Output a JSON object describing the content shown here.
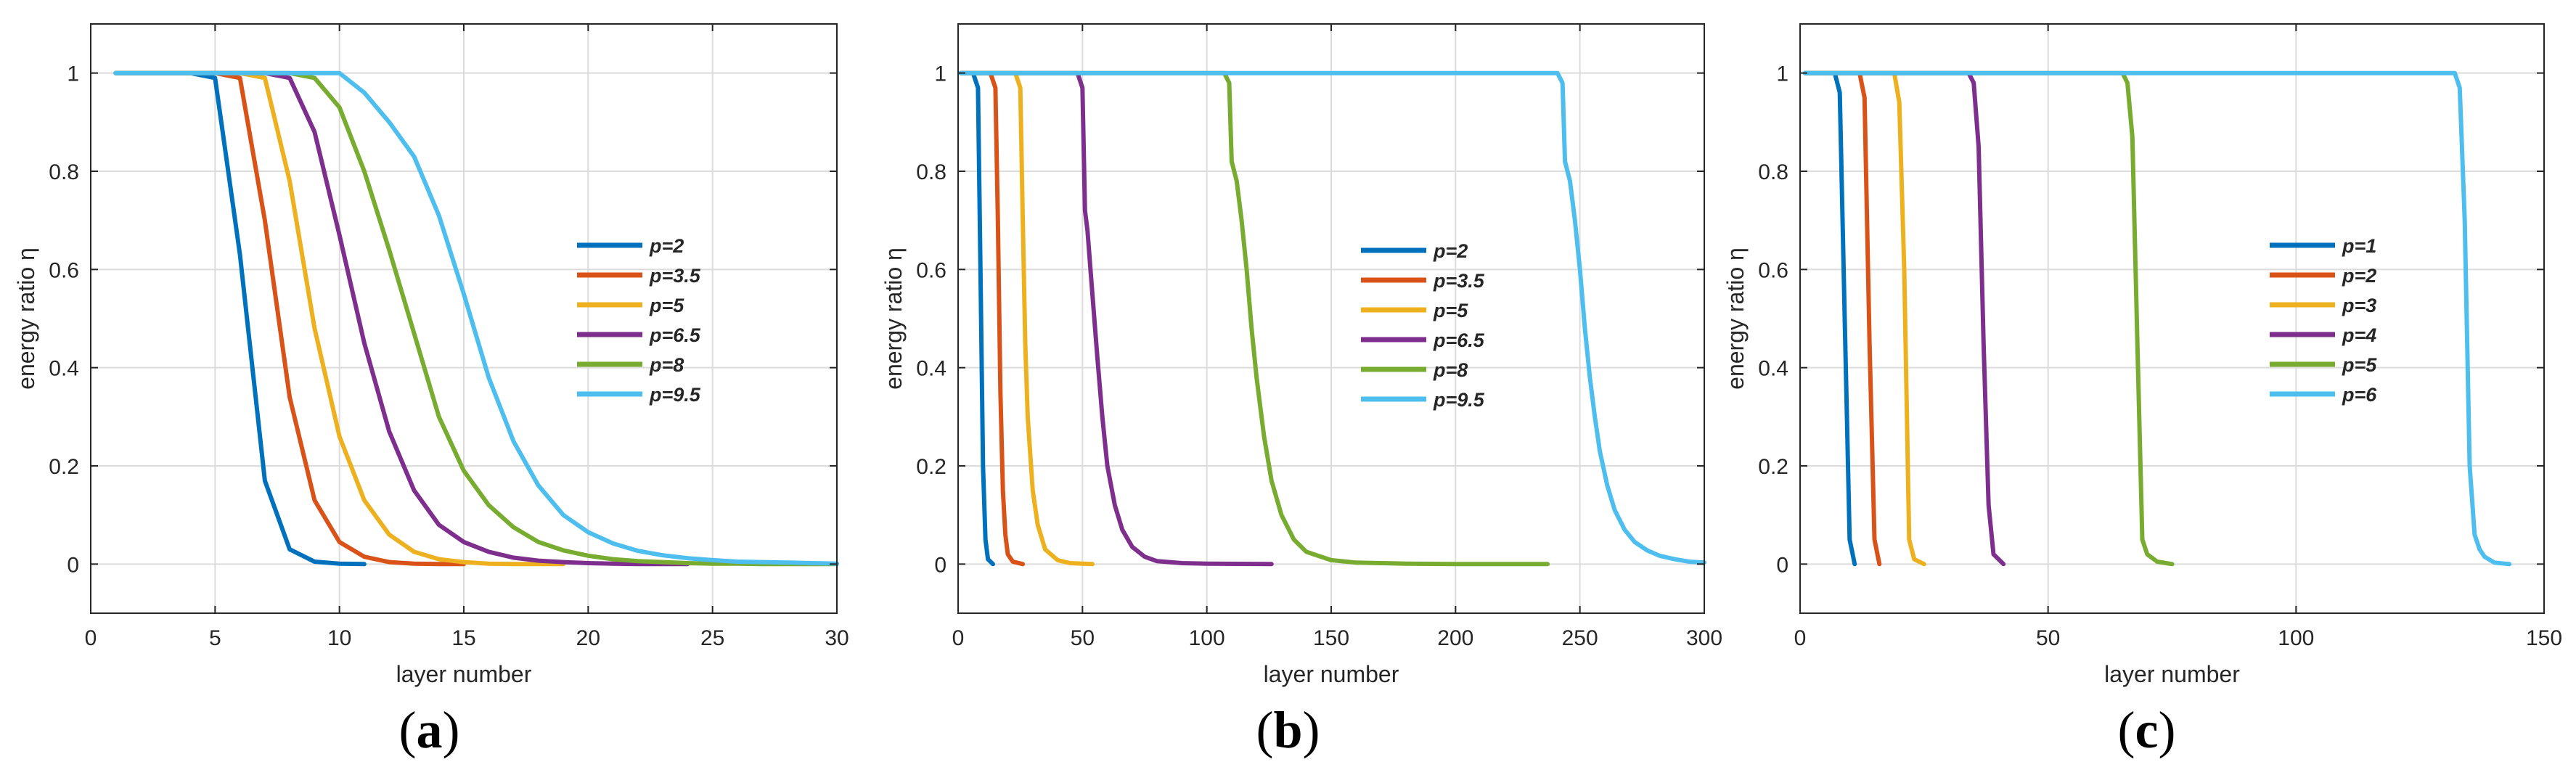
{
  "chart_data": [
    {
      "type": "line",
      "panel_label": "a",
      "xlabel": "layer number",
      "ylabel": "energy ratio η",
      "xlim": [
        0,
        30
      ],
      "ylim": [
        -0.1,
        1.1
      ],
      "xticks": [
        0,
        5,
        10,
        15,
        20,
        25,
        30
      ],
      "yticks": [
        0,
        0.2,
        0.4,
        0.6,
        0.8,
        1
      ],
      "ytick_labels": [
        "0",
        "0.2",
        "0.4",
        "0.6",
        "0.8",
        "1"
      ],
      "legend_position": "center-right",
      "series": [
        {
          "name": "p=2",
          "color": "#0072BD",
          "x": [
            1,
            2,
            3,
            4,
            5,
            6,
            7,
            8,
            9,
            10,
            11
          ],
          "y": [
            1,
            1,
            1,
            1,
            0.99,
            0.63,
            0.17,
            0.03,
            0.005,
            0.001,
            0
          ]
        },
        {
          "name": "p=3.5",
          "color": "#D95319",
          "x": [
            1,
            2,
            3,
            4,
            5,
            6,
            7,
            8,
            9,
            10,
            11,
            12,
            13,
            14,
            15
          ],
          "y": [
            1,
            1,
            1,
            1,
            1,
            0.99,
            0.7,
            0.34,
            0.13,
            0.045,
            0.015,
            0.004,
            0.001,
            0,
            0
          ]
        },
        {
          "name": "p=5",
          "color": "#EDB120",
          "x": [
            1,
            2,
            3,
            4,
            5,
            6,
            7,
            8,
            9,
            10,
            11,
            12,
            13,
            14,
            15,
            16,
            17,
            18,
            19
          ],
          "y": [
            1,
            1,
            1,
            1,
            1,
            1,
            0.99,
            0.78,
            0.48,
            0.26,
            0.13,
            0.06,
            0.025,
            0.01,
            0.004,
            0.001,
            0,
            0,
            0
          ]
        },
        {
          "name": "p=6.5",
          "color": "#7E2F8E",
          "x": [
            1,
            2,
            3,
            4,
            5,
            6,
            7,
            8,
            9,
            10,
            11,
            12,
            13,
            14,
            15,
            16,
            17,
            18,
            19,
            20,
            21,
            22,
            23,
            24
          ],
          "y": [
            1,
            1,
            1,
            1,
            1,
            1,
            1,
            0.99,
            0.88,
            0.67,
            0.45,
            0.27,
            0.15,
            0.08,
            0.045,
            0.025,
            0.013,
            0.007,
            0.004,
            0.002,
            0.001,
            0,
            0,
            0
          ]
        },
        {
          "name": "p=8",
          "color": "#77AC30",
          "x": [
            1,
            2,
            3,
            4,
            5,
            6,
            7,
            8,
            9,
            10,
            11,
            12,
            13,
            14,
            15,
            16,
            17,
            18,
            19,
            20,
            21,
            22,
            23,
            24,
            25,
            26,
            27,
            28,
            29,
            30
          ],
          "y": [
            1,
            1,
            1,
            1,
            1,
            1,
            1,
            1,
            0.99,
            0.93,
            0.8,
            0.64,
            0.47,
            0.3,
            0.19,
            0.12,
            0.075,
            0.045,
            0.028,
            0.017,
            0.01,
            0.006,
            0.004,
            0.002,
            0.001,
            0.001,
            0,
            0,
            0,
            0
          ]
        },
        {
          "name": "p=9.5",
          "color": "#4DBEEE",
          "x": [
            1,
            2,
            3,
            4,
            5,
            6,
            7,
            8,
            9,
            10,
            11,
            12,
            13,
            14,
            15,
            16,
            17,
            18,
            19,
            20,
            21,
            22,
            23,
            24,
            25,
            26,
            27,
            28,
            29,
            30
          ],
          "y": [
            1,
            1,
            1,
            1,
            1,
            1,
            1,
            1,
            1,
            1,
            0.96,
            0.9,
            0.83,
            0.71,
            0.55,
            0.38,
            0.25,
            0.16,
            0.1,
            0.065,
            0.042,
            0.027,
            0.018,
            0.012,
            0.008,
            0.005,
            0.004,
            0.003,
            0.002,
            0.001
          ]
        }
      ]
    },
    {
      "type": "line",
      "panel_label": "b",
      "xlabel": "layer number",
      "ylabel": "energy ratio η",
      "xlim": [
        0,
        300
      ],
      "ylim": [
        -0.1,
        1.1
      ],
      "xticks": [
        0,
        50,
        100,
        150,
        200,
        250,
        300
      ],
      "yticks": [
        0,
        0.2,
        0.4,
        0.6,
        0.8,
        1
      ],
      "ytick_labels": [
        "0",
        "0.2",
        "0.4",
        "0.6",
        "0.8",
        "1"
      ],
      "legend_position": "center-right",
      "series": [
        {
          "name": "p=2",
          "color": "#0072BD",
          "x": [
            1,
            6,
            8,
            9,
            10,
            11,
            12,
            14
          ],
          "y": [
            1,
            1,
            0.97,
            0.6,
            0.2,
            0.05,
            0.01,
            0
          ]
        },
        {
          "name": "p=3.5",
          "color": "#D95319",
          "x": [
            1,
            13,
            15,
            16,
            17,
            18,
            19,
            20,
            22,
            26
          ],
          "y": [
            1,
            1,
            0.97,
            0.7,
            0.35,
            0.15,
            0.06,
            0.02,
            0.005,
            0
          ]
        },
        {
          "name": "p=5",
          "color": "#EDB120",
          "x": [
            1,
            23,
            25,
            26,
            27,
            28,
            30,
            32,
            35,
            40,
            45,
            54
          ],
          "y": [
            1,
            1,
            0.97,
            0.7,
            0.45,
            0.3,
            0.15,
            0.08,
            0.03,
            0.008,
            0.002,
            0
          ]
        },
        {
          "name": "p=6.5",
          "color": "#7E2F8E",
          "x": [
            1,
            48,
            50,
            51,
            52,
            54,
            56,
            58,
            60,
            63,
            66,
            70,
            75,
            80,
            90,
            100,
            126
          ],
          "y": [
            1,
            1,
            0.97,
            0.72,
            0.68,
            0.55,
            0.42,
            0.3,
            0.2,
            0.12,
            0.07,
            0.035,
            0.015,
            0.006,
            0.002,
            0.001,
            0
          ]
        },
        {
          "name": "p=8",
          "color": "#77AC30",
          "x": [
            1,
            107,
            109,
            110,
            112,
            114,
            116,
            118,
            120,
            123,
            126,
            130,
            135,
            140,
            150,
            160,
            180,
            200,
            237
          ],
          "y": [
            1,
            1,
            0.98,
            0.82,
            0.78,
            0.7,
            0.6,
            0.48,
            0.38,
            0.26,
            0.17,
            0.1,
            0.05,
            0.025,
            0.008,
            0.003,
            0.001,
            0,
            0
          ]
        },
        {
          "name": "p=9.5",
          "color": "#4DBEEE",
          "x": [
            1,
            241,
            243,
            244,
            246,
            248,
            250,
            252,
            254,
            256,
            258,
            261,
            264,
            268,
            272,
            277,
            282,
            288,
            294,
            300
          ],
          "y": [
            1,
            1,
            0.98,
            0.82,
            0.78,
            0.7,
            0.6,
            0.48,
            0.38,
            0.3,
            0.23,
            0.16,
            0.11,
            0.07,
            0.045,
            0.028,
            0.017,
            0.01,
            0.005,
            0.003
          ]
        }
      ]
    },
    {
      "type": "line",
      "panel_label": "c",
      "xlabel": "layer number",
      "ylabel": "energy ratio η",
      "xlim": [
        0,
        150
      ],
      "ylim": [
        -0.1,
        1.1
      ],
      "xticks": [
        0,
        50,
        100,
        150
      ],
      "yticks": [
        0,
        0.2,
        0.4,
        0.6,
        0.8,
        1
      ],
      "ytick_labels": [
        "0",
        "0.2",
        "0.4",
        "0.6",
        "0.8",
        "1"
      ],
      "legend_position": "center-right",
      "series": [
        {
          "name": "p=1",
          "color": "#0072BD",
          "x": [
            1,
            7,
            8,
            9,
            10,
            11
          ],
          "y": [
            1,
            1,
            0.96,
            0.5,
            0.05,
            0
          ]
        },
        {
          "name": "p=2",
          "color": "#D95319",
          "x": [
            1,
            12,
            13,
            14,
            15,
            16
          ],
          "y": [
            1,
            1,
            0.95,
            0.45,
            0.05,
            0
          ]
        },
        {
          "name": "p=3",
          "color": "#EDB120",
          "x": [
            1,
            19,
            20,
            21,
            22,
            23,
            25
          ],
          "y": [
            1,
            1,
            0.94,
            0.6,
            0.05,
            0.01,
            0
          ]
        },
        {
          "name": "p=4",
          "color": "#7E2F8E",
          "x": [
            1,
            34,
            35,
            36,
            37,
            38,
            39,
            41
          ],
          "y": [
            1,
            1,
            0.98,
            0.85,
            0.45,
            0.12,
            0.02,
            0
          ]
        },
        {
          "name": "p=5",
          "color": "#77AC30",
          "x": [
            1,
            65,
            66,
            67,
            68,
            69,
            70,
            72,
            75
          ],
          "y": [
            1,
            1,
            0.98,
            0.87,
            0.45,
            0.05,
            0.02,
            0.005,
            0
          ]
        },
        {
          "name": "p=6",
          "color": "#4DBEEE",
          "x": [
            1,
            132,
            133,
            134,
            135,
            136,
            137,
            138,
            140,
            143
          ],
          "y": [
            1,
            1,
            0.97,
            0.7,
            0.2,
            0.06,
            0.03,
            0.015,
            0.003,
            0
          ]
        }
      ]
    }
  ]
}
